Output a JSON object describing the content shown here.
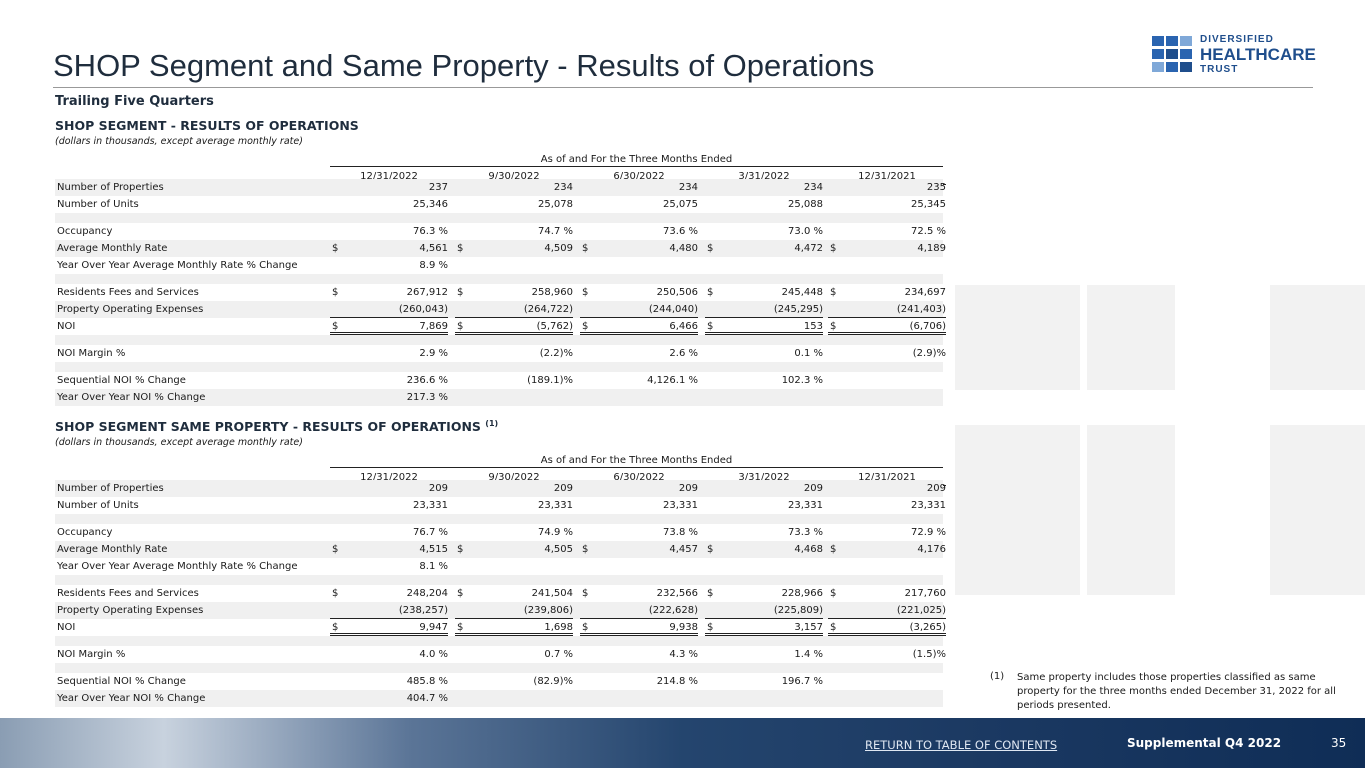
{
  "header": {
    "title": "SHOP Segment and Same Property - Results of Operations",
    "subtitle": "Trailing Five Quarters",
    "logo": [
      "DIVERSIFIED",
      "HEALTHCARE",
      "TRUST"
    ]
  },
  "sections": [
    {
      "title": "SHOP SEGMENT -  RESULTS OF OPERATIONS",
      "note": "(dollars in thousands, except average monthly rate)",
      "period_header": "As of and For the Three Months Ended",
      "columns": [
        "12/31/2022",
        "9/30/2022",
        "6/30/2022",
        "3/31/2022",
        "12/31/2021"
      ],
      "groups": [
        [
          {
            "label": "Number of Properties",
            "cells": [
              "237",
              "234",
              "234",
              "234",
              "235"
            ]
          },
          {
            "label": "Number of Units",
            "cells": [
              "25,346",
              "25,078",
              "25,075",
              "25,088",
              "25,345"
            ]
          }
        ],
        [
          {
            "label": "Occupancy",
            "cells": [
              "76.3 %",
              "74.7 %",
              "73.6 %",
              "73.0 %",
              "72.5 %"
            ]
          },
          {
            "label": "Average Monthly Rate",
            "prefix": "$",
            "cells": [
              "4,561",
              "4,509",
              "4,480",
              "4,472",
              "4,189"
            ]
          },
          {
            "label": "Year Over Year Average Monthly Rate % Change",
            "cells": [
              "8.9 %"
            ]
          }
        ],
        [
          {
            "label": "Residents Fees and Services",
            "prefix": "$",
            "cells": [
              "267,912",
              "258,960",
              "250,506",
              "245,448",
              "234,697"
            ]
          },
          {
            "label": "Property Operating Expenses",
            "cells": [
              "(260,043)",
              "(264,722)",
              "(244,040)",
              "(245,295)",
              "(241,403)"
            ]
          },
          {
            "label": "NOI",
            "prefix": "$",
            "cells": [
              "7,869",
              "(5,762)",
              "6,466",
              "153",
              "(6,706)"
            ]
          }
        ],
        [
          {
            "label": "NOI Margin %",
            "cells": [
              "2.9 %",
              "(2.2)%",
              "2.6 %",
              "0.1 %",
              "(2.9)%"
            ]
          }
        ],
        [
          {
            "label": "Sequential NOI % Change",
            "cells": [
              "236.6 %",
              "(189.1)%",
              "4,126.1 %",
              "102.3 %"
            ]
          },
          {
            "label": "Year Over Year NOI % Change",
            "cells": [
              "217.3 %"
            ]
          }
        ]
      ]
    },
    {
      "title": "SHOP SEGMENT SAME PROPERTY - RESULTS OF OPERATIONS",
      "footnote_ref": "(1)",
      "note": "(dollars in thousands, except average monthly rate)",
      "period_header": "As of and For the Three Months Ended",
      "columns": [
        "12/31/2022",
        "9/30/2022",
        "6/30/2022",
        "3/31/2022",
        "12/31/2021"
      ],
      "groups": [
        [
          {
            "label": "Number of Properties",
            "cells": [
              "209",
              "209",
              "209",
              "209",
              "209"
            ]
          },
          {
            "label": "Number of Units",
            "cells": [
              "23,331",
              "23,331",
              "23,331",
              "23,331",
              "23,331"
            ]
          }
        ],
        [
          {
            "label": "Occupancy",
            "cells": [
              "76.7 %",
              "74.9 %",
              "73.8 %",
              "73.3 %",
              "72.9 %"
            ]
          },
          {
            "label": "Average Monthly Rate",
            "prefix": "$",
            "cells": [
              "4,515",
              "4,505",
              "4,457",
              "4,468",
              "4,176"
            ]
          },
          {
            "label": "Year Over Year Average Monthly Rate % Change",
            "cells": [
              "8.1 %"
            ]
          }
        ],
        [
          {
            "label": "Residents Fees and Services",
            "prefix": "$",
            "cells": [
              "248,204",
              "241,504",
              "232,566",
              "228,966",
              "217,760"
            ]
          },
          {
            "label": "Property Operating Expenses",
            "cells": [
              "(238,257)",
              "(239,806)",
              "(222,628)",
              "(225,809)",
              "(221,025)"
            ]
          },
          {
            "label": "NOI",
            "prefix": "$",
            "cells": [
              "9,947",
              "1,698",
              "9,938",
              "3,157",
              "(3,265)"
            ]
          }
        ],
        [
          {
            "label": "NOI Margin %",
            "cells": [
              "4.0 %",
              "0.7 %",
              "4.3 %",
              "1.4 %",
              "(1.5)%"
            ]
          }
        ],
        [
          {
            "label": "Sequential NOI % Change",
            "cells": [
              "485.8 %",
              "(82.9)%",
              "214.8 %",
              "196.7 %"
            ]
          },
          {
            "label": "Year Over Year NOI % Change",
            "cells": [
              "404.7 %"
            ]
          }
        ]
      ]
    }
  ],
  "footnote": {
    "marker": "(1)",
    "text": "Same property includes those properties classified as same property for the three months ended December 31, 2022 for all periods presented."
  },
  "footer": {
    "link": "RETURN TO TABLE OF CONTENTS",
    "doc": "Supplemental Q4 2022",
    "page": "35"
  }
}
